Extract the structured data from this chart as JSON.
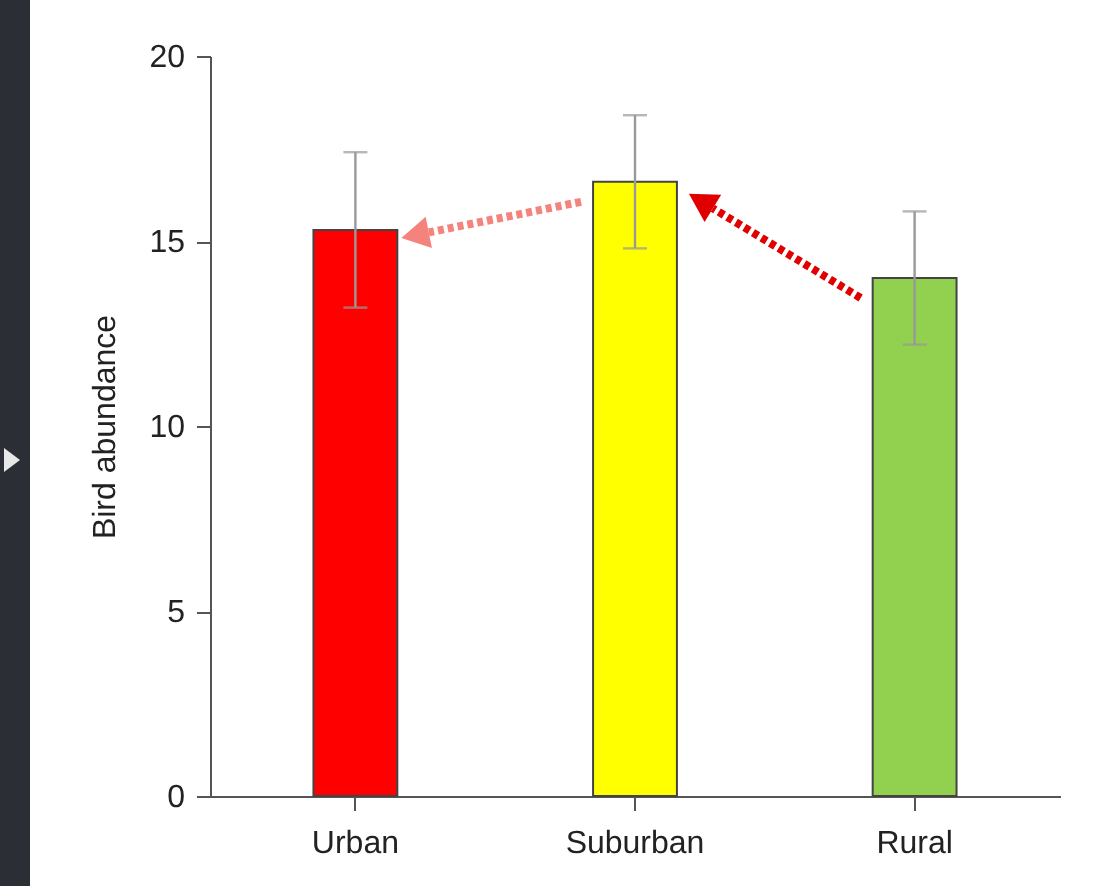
{
  "chart_data": {
    "type": "bar",
    "ylabel": "Bird abundance",
    "categories": [
      "Urban",
      "Suburban",
      "Rural"
    ],
    "values": [
      15.3,
      16.6,
      14.0
    ],
    "colors": [
      "#ff0000",
      "#ffff00",
      "#92d050"
    ],
    "errors": [
      2.1,
      1.8,
      1.8
    ],
    "ylim": [
      0,
      20
    ],
    "yticks": [
      0,
      5,
      10,
      15,
      20
    ],
    "grid": false
  }
}
